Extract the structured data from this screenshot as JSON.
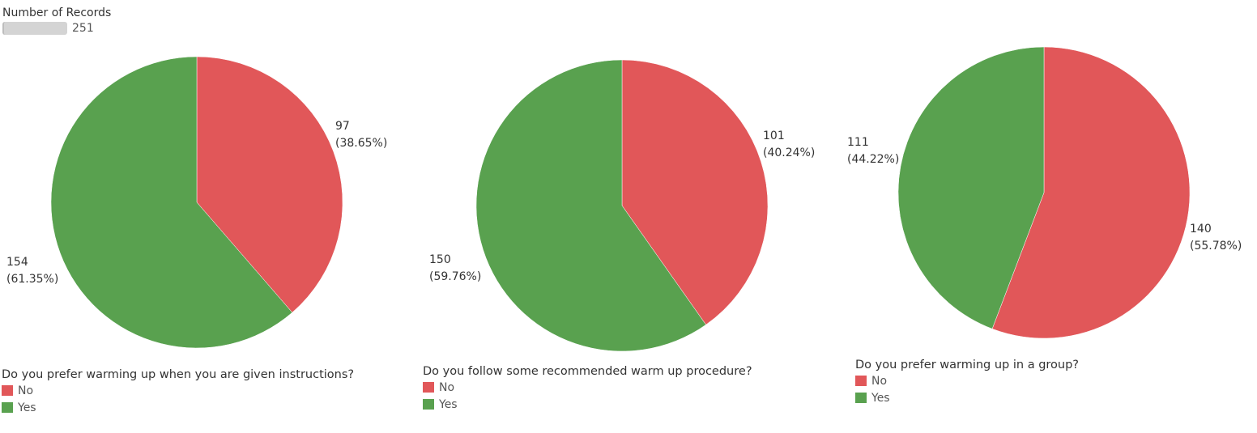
{
  "size_legend": {
    "title": "Number of Records",
    "value": "251"
  },
  "colors": {
    "No": "#e15759",
    "Yes": "#59a14f"
  },
  "chart_data": [
    {
      "type": "pie",
      "legend_title": "Do you prefer warming up when you are given instructions?",
      "categories": [
        "No",
        "Yes"
      ],
      "values": [
        97,
        154
      ],
      "labels": [
        {
          "value": "97",
          "percent": "(38.65%)"
        },
        {
          "value": "154",
          "percent": "(61.35%)"
        }
      ]
    },
    {
      "type": "pie",
      "legend_title": "Do you follow some recommended warm up procedure?",
      "categories": [
        "No",
        "Yes"
      ],
      "values": [
        101,
        150
      ],
      "labels": [
        {
          "value": "101",
          "percent": "(40.24%)"
        },
        {
          "value": "150",
          "percent": "(59.76%)"
        }
      ]
    },
    {
      "type": "pie",
      "legend_title": "Do you prefer warming up in a group?",
      "categories": [
        "No",
        "Yes"
      ],
      "values": [
        140,
        111
      ],
      "labels": [
        {
          "value": "140",
          "percent": "(55.78%)"
        },
        {
          "value": "111",
          "percent": "(44.22%)"
        }
      ]
    }
  ]
}
